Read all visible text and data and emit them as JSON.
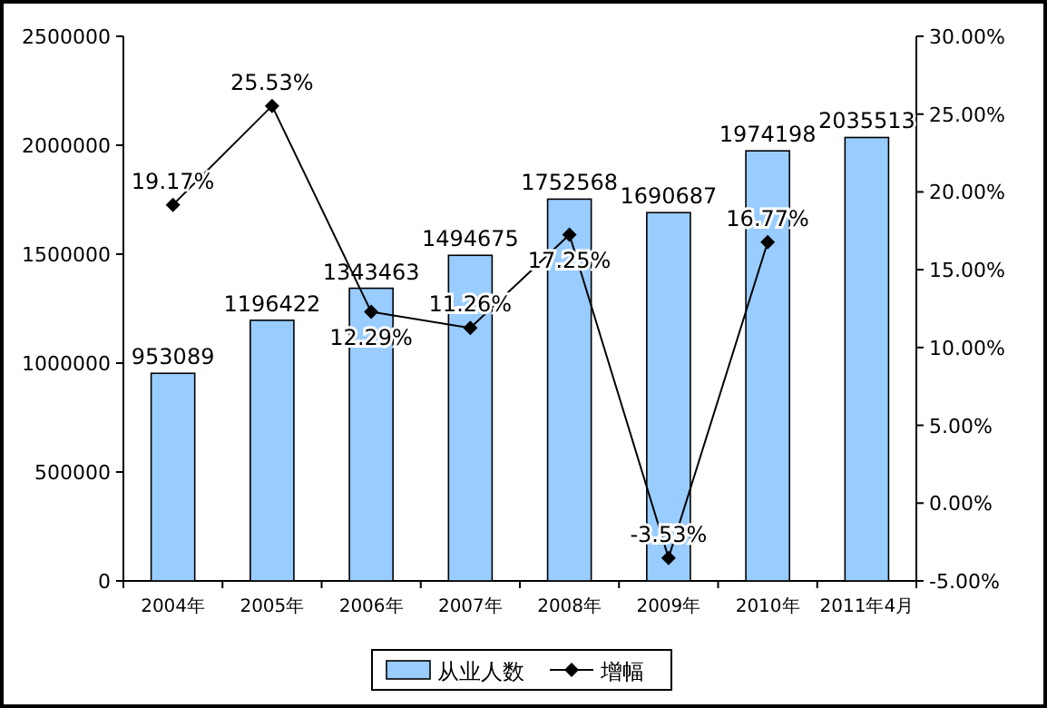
{
  "chart_data": {
    "type": "bar",
    "categories": [
      "2004年",
      "2005年",
      "2006年",
      "2007年",
      "2008年",
      "2009年",
      "2010年",
      "2011年4月"
    ],
    "series": [
      {
        "name": "从业人数",
        "color": "#99ccff",
        "values": [
          953089,
          1196422,
          1343463,
          1494675,
          1752568,
          1690687,
          1974198,
          2035513
        ],
        "value_labels": [
          "953089",
          "1196422",
          "1343463",
          "1494675",
          "1752568",
          "1690687",
          "1974198",
          "2035513"
        ]
      },
      {
        "name": "增幅",
        "type": "line",
        "axis": "y2",
        "color": "#000000",
        "marker": "diamond",
        "values": [
          19.17,
          25.53,
          12.29,
          11.26,
          17.25,
          -3.53,
          16.77,
          null
        ],
        "value_labels": [
          "19.17%",
          "25.53%",
          "12.29%",
          "11.26%",
          "17.25%",
          "-3.53%",
          "16.77%",
          null
        ]
      }
    ],
    "ylim": [
      0,
      2500000
    ],
    "yticks": [
      0,
      500000,
      1000000,
      1500000,
      2000000,
      2500000
    ],
    "y2lim": [
      -5,
      30
    ],
    "y2ticks": [
      {
        "value": -5,
        "label": "-5.00%"
      },
      {
        "value": 0,
        "label": "0.00%"
      },
      {
        "value": 5,
        "label": "5.00%"
      },
      {
        "value": 10,
        "label": "10.00%"
      },
      {
        "value": 15,
        "label": "15.00%"
      },
      {
        "value": 20,
        "label": "20.00%"
      },
      {
        "value": 25,
        "label": "25.00%"
      },
      {
        "value": 30,
        "label": "30.00%"
      }
    ],
    "legend": "bottom",
    "grid": false
  }
}
